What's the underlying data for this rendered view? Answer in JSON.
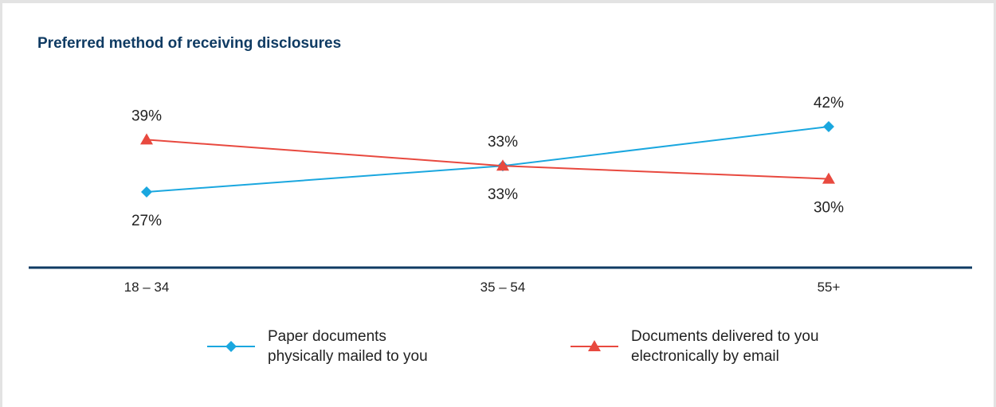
{
  "chart_data": {
    "type": "line",
    "title": "Preferred method of receiving disclosures",
    "categories": [
      "18 – 34",
      "35 – 54",
      "55+"
    ],
    "ylim": [
      0,
      50
    ],
    "series": [
      {
        "name": "Paper documents physically mailed to you",
        "values": [
          27,
          33,
          42
        ],
        "labels": [
          "27%",
          "33%",
          "42%"
        ],
        "label_positions": [
          "below",
          "below",
          "above"
        ],
        "color": "#1aa7df",
        "marker": "diamond"
      },
      {
        "name": "Documents delivered to you electronically by email",
        "values": [
          39,
          33,
          30
        ],
        "labels": [
          "39%",
          "33%",
          "30%"
        ],
        "label_positions": [
          "above",
          "above",
          "below"
        ],
        "color": "#e8493f",
        "marker": "triangle"
      }
    ],
    "axis_color": "#0f3b63",
    "grid": false,
    "legend": "bottom"
  },
  "legend": {
    "paper_line1": "Paper documents",
    "paper_line2": "physically mailed to you",
    "email_line1": "Documents delivered to you",
    "email_line2": "electronically by email"
  }
}
